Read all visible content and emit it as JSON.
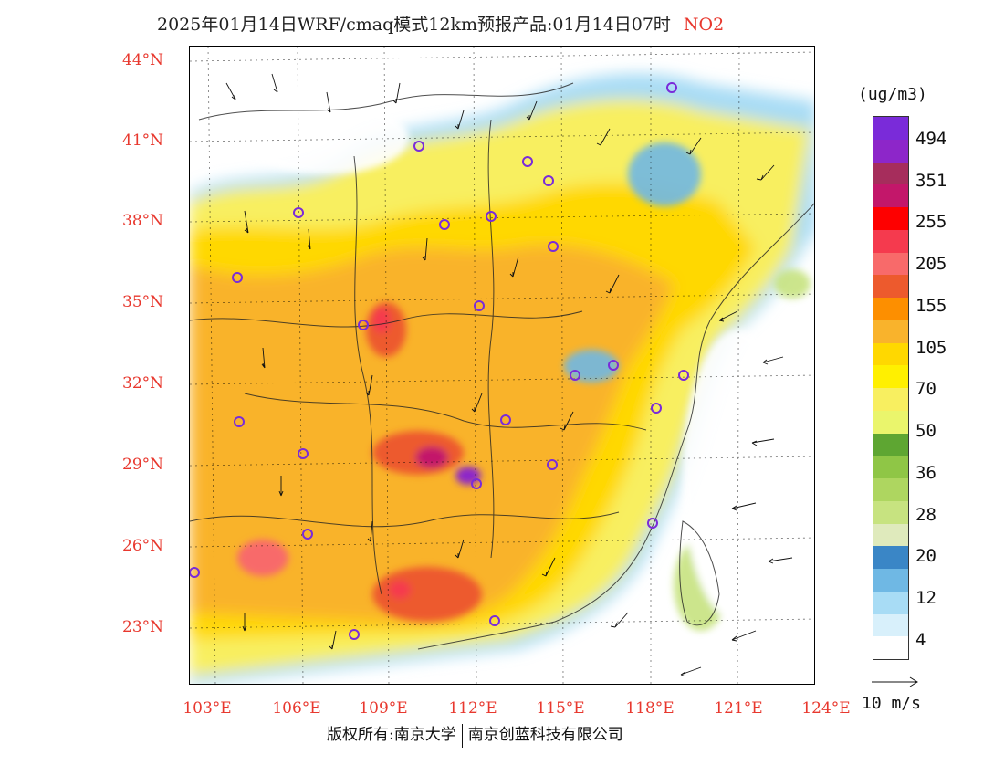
{
  "title": "2025年01月14日WRF/cmaq模式12km预报产品:01月14日07时",
  "pollutant": "NO2",
  "unit": "(ug/m3)",
  "lat_ticks": [
    "44°N",
    "41°N",
    "38°N",
    "35°N",
    "32°N",
    "29°N",
    "26°N",
    "23°N"
  ],
  "lon_ticks": [
    "103°E",
    "106°E",
    "109°E",
    "112°E",
    "115°E",
    "118°E",
    "121°E",
    "124°E"
  ],
  "legend": {
    "colors": [
      "#ffffff",
      "#d8f0fb",
      "#a8dcf5",
      "#6fb8e4",
      "#3a86c6",
      "#dfeabc",
      "#c7e380",
      "#aed660",
      "#8fc646",
      "#5ea632",
      "#eaf56c",
      "#f8ef60",
      "#fff000",
      "#ffd800",
      "#f9b32c",
      "#fd8f00",
      "#ed5a2d",
      "#f86a6a",
      "#f53a4e",
      "#fe0000",
      "#c3176a",
      "#a62d5c",
      "#8d26c9",
      "#7a2bd9"
    ],
    "labels": [
      "4",
      "12",
      "20",
      "28",
      "36",
      "50",
      "70",
      "105",
      "155",
      "205",
      "255",
      "351",
      "494"
    ]
  },
  "vector_ref_label": "10 m/s",
  "copyright_left": "版权所有:南京大学",
  "copyright_right": "南京创蓝科技有限公司",
  "icons": [
    "city-marker-icon",
    "wind-arrow-icon"
  ]
}
